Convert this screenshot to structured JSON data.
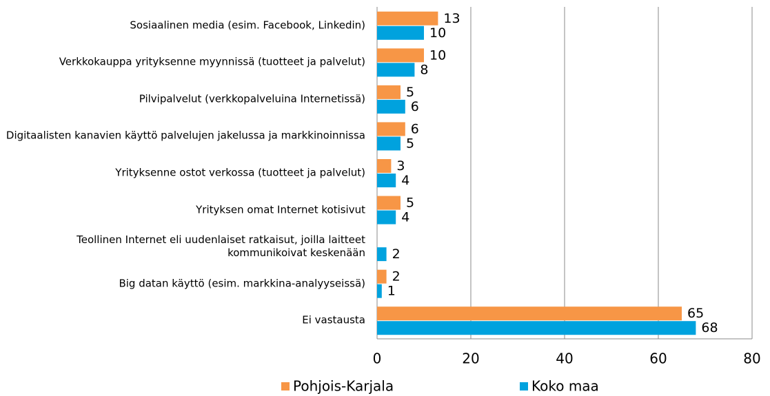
{
  "chart_data": {
    "type": "hbar",
    "categories": [
      "Sosiaalinen media (esim. Facebook, Linkedin)",
      "Verkkokauppa yrityksenne myynnissä (tuotteet ja palvelut)",
      "Pilvipalvelut  (verkkopalveluina Internetissä)",
      "Digitaalisten kanavien käyttö palvelujen jakelussa ja markkinoinnissa",
      "Yrityksenne ostot verkossa (tuotteet ja palvelut)",
      "Yrityksen omat Internet kotisivut",
      "Teollinen Internet eli uudenlaiset ratkaisut, joilla laitteet kommunikoivat keskenään",
      "Big datan käyttö (esim. markkina-analyyseissä)",
      "Ei vastausta"
    ],
    "series": [
      {
        "name": "Pohjois-Karjala",
        "color": "#f79646",
        "values": [
          13,
          10,
          5,
          6,
          3,
          5,
          null,
          2,
          65
        ]
      },
      {
        "name": "Koko maa",
        "color": "#00a2de",
        "values": [
          10,
          8,
          6,
          5,
          4,
          4,
          2,
          1,
          68
        ]
      }
    ],
    "xlim": [
      0,
      80
    ],
    "xticks": [
      0,
      20,
      40,
      60,
      80
    ],
    "grid": true,
    "legend": "bottom"
  }
}
